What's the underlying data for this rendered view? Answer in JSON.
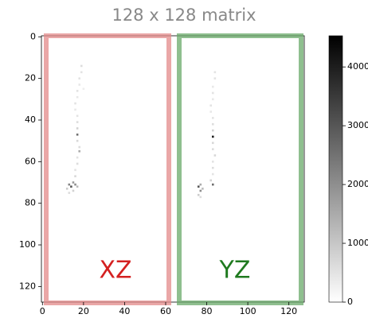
{
  "chart_data": {
    "type": "heatmap",
    "title": "128 x 128 matrix",
    "xlim": [
      -0.5,
      127.5
    ],
    "ylim": [
      127.5,
      -0.5
    ],
    "xticks": [
      0,
      20,
      40,
      60,
      80,
      100,
      120
    ],
    "yticks": [
      0,
      20,
      40,
      60,
      80,
      100,
      120
    ],
    "clim": [
      0,
      4530
    ],
    "cticks": [
      0,
      1000,
      2000,
      3000,
      4000
    ],
    "colormap": "gray_r",
    "annotations": [
      {
        "text": "XZ",
        "color": "#d42020"
      },
      {
        "text": "YZ",
        "color": "#1f7a1f"
      }
    ],
    "points": {
      "x": [
        19,
        19,
        18,
        18,
        17,
        17,
        16,
        16,
        17,
        17,
        17,
        17,
        17,
        18,
        18,
        17,
        17,
        16,
        16,
        15,
        13,
        14,
        16,
        17,
        12,
        15,
        13,
        20,
        84,
        84,
        83,
        83,
        83,
        82,
        82,
        83,
        83,
        83,
        83,
        83,
        83,
        84,
        83,
        83,
        83,
        82,
        83,
        77,
        76,
        77,
        78,
        76,
        77
      ],
      "y": [
        14,
        17,
        20,
        23,
        26,
        29,
        32,
        35,
        38,
        41,
        44,
        47,
        50,
        53,
        55,
        58,
        61,
        64,
        67,
        70,
        71,
        72,
        71,
        72,
        73,
        74,
        75,
        25,
        17,
        20,
        24,
        27,
        30,
        33,
        36,
        39,
        42,
        45,
        48,
        51,
        54,
        57,
        60,
        63,
        66,
        69,
        71,
        71,
        72,
        74,
        73,
        76,
        77
      ],
      "values": [
        600,
        500,
        500,
        400,
        500,
        400,
        500,
        400,
        500,
        600,
        800,
        2500,
        700,
        600,
        1500,
        500,
        600,
        500,
        700,
        1800,
        2200,
        3000,
        2000,
        1200,
        900,
        800,
        600,
        300,
        500,
        500,
        400,
        500,
        400,
        500,
        400,
        500,
        600,
        800,
        4000,
        700,
        600,
        700,
        500,
        600,
        500,
        800,
        2600,
        1500,
        3000,
        2000,
        1200,
        900,
        600
      ]
    }
  }
}
